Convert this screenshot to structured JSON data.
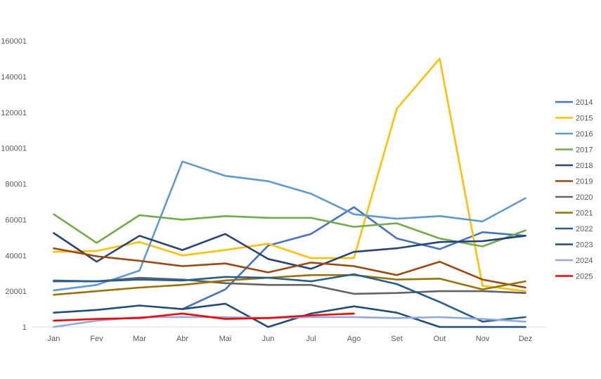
{
  "chart_data": {
    "type": "line",
    "title": "",
    "xlabel": "",
    "ylabel": "",
    "categories": [
      "Jan",
      "Fev",
      "Mar",
      "Abr",
      "Mai",
      "Jun",
      "Jul",
      "Ago",
      "Set",
      "Out",
      "Nov",
      "Dez"
    ],
    "y_ticks": [
      "1",
      "20001",
      "40001",
      "60001",
      "80001",
      "100001",
      "120001",
      "140001",
      "160001"
    ],
    "ylim": [
      1,
      160001
    ],
    "grid": false,
    "legend_position": "right",
    "series": [
      {
        "name": "2014",
        "color": "#4472C4",
        "values": [
          null,
          null,
          null,
          10000,
          21000,
          45500,
          52000,
          67000,
          49500,
          43500,
          53000,
          51000
        ]
      },
      {
        "name": "2015",
        "color": "#FFC000",
        "values": [
          42000,
          42500,
          47500,
          40000,
          43000,
          46500,
          38500,
          38500,
          122000,
          150000,
          23000,
          20000
        ]
      },
      {
        "name": "2016",
        "color": "#5B9BD5",
        "values": [
          20500,
          23500,
          31500,
          92500,
          84500,
          81500,
          74500,
          63000,
          60500,
          62000,
          59000,
          72000
        ]
      },
      {
        "name": "2017",
        "color": "#70AD47",
        "values": [
          63000,
          47000,
          62500,
          60000,
          62000,
          61000,
          61000,
          56000,
          58000,
          49500,
          45000,
          54000
        ]
      },
      {
        "name": "2018",
        "color": "#264478",
        "values": [
          52500,
          36500,
          51000,
          43000,
          52000,
          38000,
          32500,
          42000,
          44000,
          47500,
          48000,
          51000
        ]
      },
      {
        "name": "2019",
        "color": "#9E480E",
        "values": [
          44000,
          39500,
          37000,
          34000,
          35500,
          30500,
          36000,
          34000,
          29000,
          36500,
          26500,
          22000
        ]
      },
      {
        "name": "2020",
        "color": "#636363",
        "values": [
          26000,
          25500,
          27500,
          26500,
          24500,
          23500,
          23500,
          18500,
          19000,
          20000,
          20000,
          19000
        ]
      },
      {
        "name": "2021",
        "color": "#997300",
        "values": [
          18000,
          20000,
          22000,
          23500,
          26000,
          27500,
          29000,
          29000,
          26500,
          27000,
          21000,
          25500
        ]
      },
      {
        "name": "2022",
        "color": "#255E91",
        "values": [
          25500,
          25500,
          26500,
          26000,
          28000,
          27500,
          25500,
          29500,
          24000,
          14000,
          3000,
          5500
        ]
      },
      {
        "name": "2023",
        "color": "#1F4E79",
        "values": [
          8000,
          9500,
          12000,
          10000,
          13000,
          1,
          7500,
          11500,
          8000,
          1,
          1,
          1
        ]
      },
      {
        "name": "2024",
        "color": "#8FAADC",
        "values": [
          1,
          3500,
          5500,
          5500,
          5500,
          5000,
          5500,
          5500,
          5000,
          5500,
          4500,
          3000
        ]
      },
      {
        "name": "2025",
        "color": "#FF0000",
        "values": [
          3500,
          4500,
          5000,
          7500,
          4500,
          5000,
          6500,
          7500,
          null,
          null,
          null,
          null
        ]
      }
    ]
  }
}
